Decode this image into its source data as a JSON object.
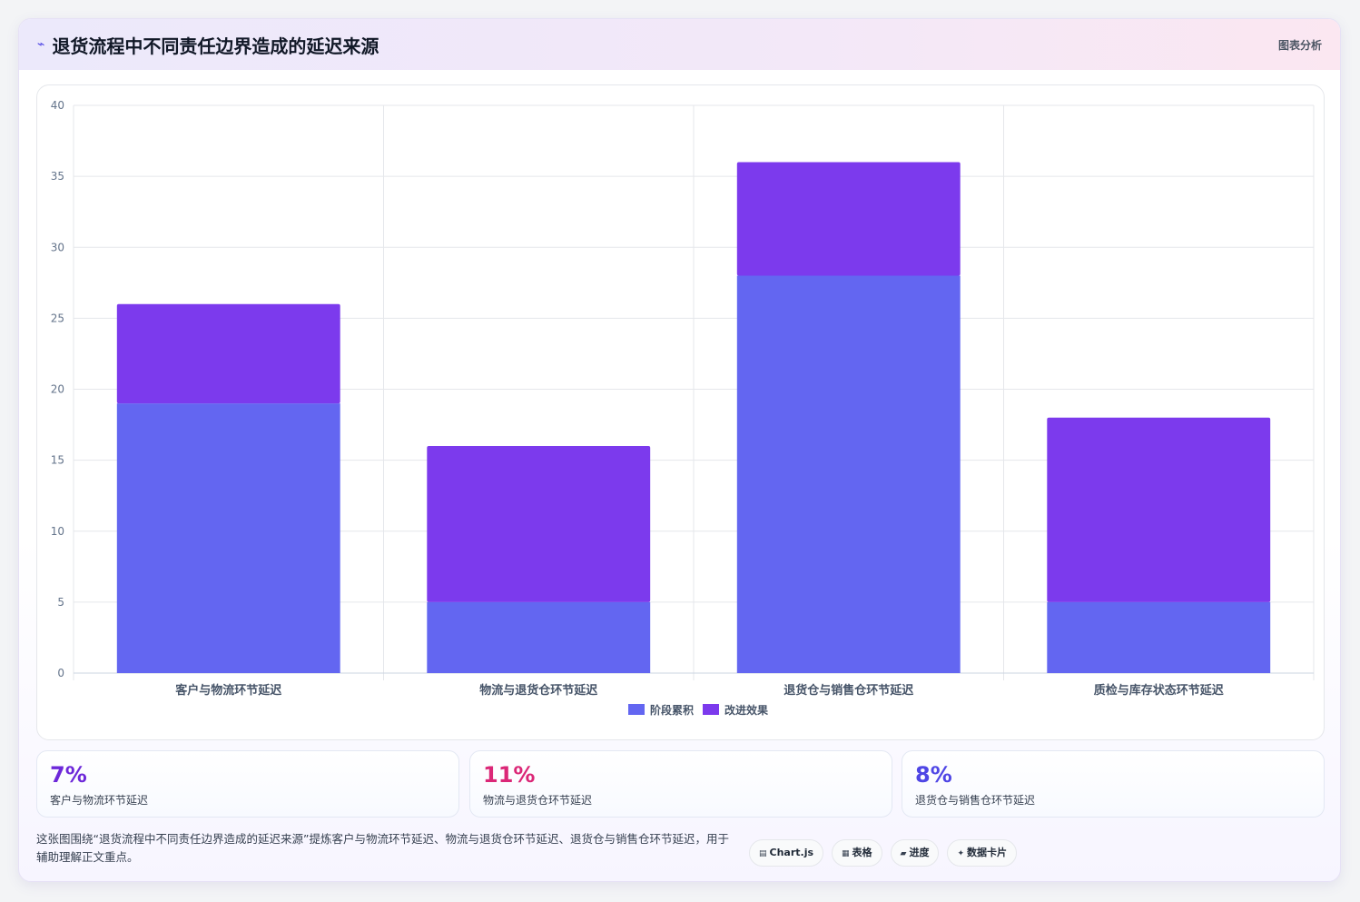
{
  "header": {
    "icon": "chart-line-icon",
    "title": "退货流程中不同责任边界造成的延迟来源",
    "tag": "图表分析"
  },
  "chart_data": {
    "type": "bar",
    "stacked": true,
    "categories": [
      "客户与物流环节延迟",
      "物流与退货仓环节延迟",
      "退货仓与销售仓环节延迟",
      "质检与库存状态环节延迟"
    ],
    "series": [
      {
        "name": "阶段累积",
        "values": [
          19,
          5,
          28,
          5
        ],
        "color": "#6366f1"
      },
      {
        "name": "改进效果",
        "values": [
          7,
          11,
          8,
          13
        ],
        "color": "#7c3aed"
      }
    ],
    "ylim": [
      0,
      40
    ],
    "yticks": [
      0,
      5,
      10,
      15,
      20,
      25,
      30,
      35,
      40
    ],
    "grid": true,
    "legend": "bottom"
  },
  "stats": [
    {
      "value": "7%",
      "label": "客户与物流环节延迟",
      "color": "#6d28d9"
    },
    {
      "value": "11%",
      "label": "物流与退货仓环节延迟",
      "color": "#db2777"
    },
    {
      "value": "8%",
      "label": "退货仓与销售仓环节延迟",
      "color": "#4f46e5"
    }
  ],
  "description": "这张图围绕“退货流程中不同责任边界造成的延迟来源”提炼客户与物流环节延迟、物流与退货仓环节延迟、退货仓与销售仓环节延迟，用于辅助理解正文重点。",
  "chips": [
    {
      "icon": "chart-icon",
      "glyph": "▤",
      "label": "Chart.js"
    },
    {
      "icon": "table-icon",
      "glyph": "▦",
      "label": "表格"
    },
    {
      "icon": "progress-icon",
      "glyph": "▰",
      "label": "进度"
    },
    {
      "icon": "sparkle-icon",
      "glyph": "✦",
      "label": "数据卡片"
    }
  ]
}
